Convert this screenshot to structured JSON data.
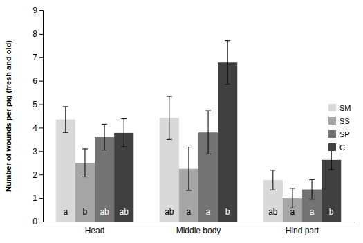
{
  "chart_data": {
    "type": "bar",
    "y_label": "Number of wounds per pig (fresh and old)",
    "categories": [
      "Head",
      "Middle body",
      "Hind part"
    ],
    "series": [
      {
        "name": "SM",
        "color": "#d9d9d9",
        "values": [
          4.35,
          4.42,
          1.77
        ],
        "errors": [
          0.55,
          0.92,
          0.42
        ],
        "letters": [
          "a",
          "ab",
          "ab"
        ]
      },
      {
        "name": "SS",
        "color": "#a6a6a6",
        "values": [
          2.5,
          2.25,
          1.0
        ],
        "errors": [
          0.6,
          0.92,
          0.42
        ],
        "letters": [
          "b",
          "a",
          "a"
        ]
      },
      {
        "name": "SP",
        "color": "#737373",
        "values": [
          3.6,
          3.8,
          1.37
        ],
        "errors": [
          0.55,
          0.92,
          0.42
        ],
        "letters": [
          "ab",
          "a",
          "a"
        ]
      },
      {
        "name": "C",
        "color": "#404040",
        "values": [
          3.78,
          6.78,
          2.63
        ],
        "errors": [
          0.6,
          0.93,
          0.42
        ],
        "letters": [
          "ab",
          "b",
          "b"
        ]
      }
    ],
    "ylim": [
      0,
      9
    ],
    "yticks": [
      0,
      1,
      2,
      3,
      4,
      5,
      6,
      7,
      8,
      9
    ],
    "grid": false,
    "legend": "right"
  }
}
